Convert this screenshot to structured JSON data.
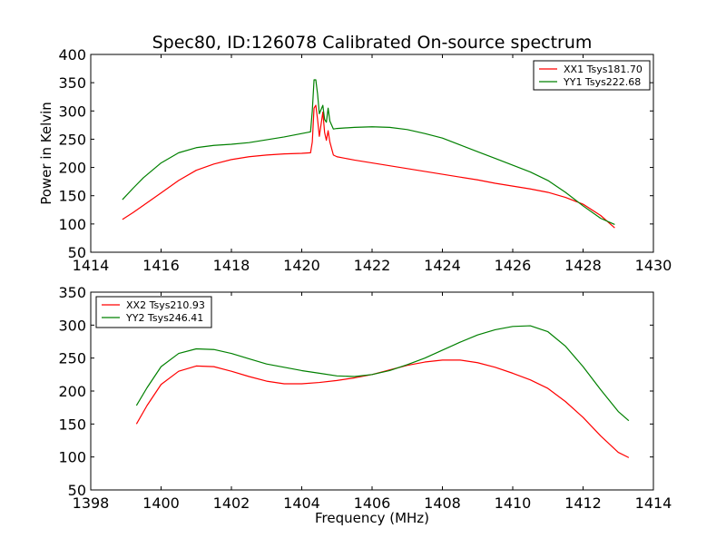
{
  "figure": {
    "title": "Spec80, ID:126078 Calibrated On-source spectrum"
  },
  "chart_data": [
    {
      "type": "line",
      "title": "Spec80, ID:126078 Calibrated On-source spectrum",
      "xlabel": "",
      "ylabel": "Power in Kelvin",
      "xlim": [
        1414,
        1430
      ],
      "ylim": [
        50,
        400
      ],
      "xticks": [
        1414,
        1416,
        1418,
        1420,
        1422,
        1424,
        1426,
        1428,
        1430
      ],
      "yticks": [
        50,
        100,
        150,
        200,
        250,
        300,
        350,
        400
      ],
      "grid": false,
      "legend_position": "top-right",
      "series": [
        {
          "name": "XX1 Tsys181.70",
          "color": "#ff0000",
          "x": [
            1414.9,
            1415.2,
            1415.5,
            1416.0,
            1416.5,
            1417.0,
            1417.5,
            1418.0,
            1418.5,
            1419.0,
            1419.5,
            1420.0,
            1420.25,
            1420.3,
            1420.35,
            1420.4,
            1420.45,
            1420.5,
            1420.6,
            1420.65,
            1420.7,
            1420.75,
            1420.8,
            1420.9,
            1421.0,
            1421.5,
            1422.0,
            1422.5,
            1423.0,
            1423.5,
            1424.0,
            1424.5,
            1425.0,
            1425.5,
            1426.0,
            1426.5,
            1427.0,
            1427.5,
            1428.0,
            1428.5,
            1428.9
          ],
          "y": [
            108,
            120,
            133,
            155,
            177,
            195,
            206,
            214,
            219,
            222,
            224,
            225,
            226,
            245,
            305,
            310,
            285,
            255,
            298,
            262,
            248,
            265,
            245,
            222,
            219,
            213,
            208,
            203,
            198,
            193,
            188,
            183,
            178,
            172,
            167,
            162,
            156,
            147,
            135,
            115,
            93
          ]
        },
        {
          "name": "YY1 Tsys222.68",
          "color": "#008000",
          "x": [
            1414.9,
            1415.2,
            1415.5,
            1416.0,
            1416.5,
            1417.0,
            1417.5,
            1418.0,
            1418.5,
            1419.0,
            1419.5,
            1420.0,
            1420.25,
            1420.3,
            1420.35,
            1420.4,
            1420.45,
            1420.5,
            1420.6,
            1420.65,
            1420.7,
            1420.75,
            1420.8,
            1420.9,
            1421.0,
            1421.5,
            1422.0,
            1422.5,
            1423.0,
            1423.5,
            1424.0,
            1424.5,
            1425.0,
            1425.5,
            1426.0,
            1426.5,
            1427.0,
            1427.5,
            1428.0,
            1428.5,
            1428.9
          ],
          "y": [
            143,
            163,
            182,
            208,
            226,
            235,
            239,
            241,
            244,
            249,
            254,
            260,
            263,
            300,
            355,
            355,
            330,
            295,
            310,
            285,
            280,
            305,
            282,
            268,
            269,
            271,
            272,
            271,
            267,
            260,
            252,
            240,
            228,
            216,
            204,
            192,
            177,
            156,
            132,
            110,
            99
          ]
        }
      ]
    },
    {
      "type": "line",
      "title": "",
      "xlabel": "Frequency (MHz)",
      "ylabel": "",
      "xlim": [
        1398,
        1414
      ],
      "ylim": [
        50,
        350
      ],
      "xticks": [
        1398,
        1400,
        1402,
        1404,
        1406,
        1408,
        1410,
        1412,
        1414
      ],
      "yticks": [
        50,
        100,
        150,
        200,
        250,
        300,
        350
      ],
      "grid": false,
      "legend_position": "top-left",
      "series": [
        {
          "name": "XX2 Tsys210.93",
          "color": "#ff0000",
          "x": [
            1399.3,
            1399.6,
            1400.0,
            1400.5,
            1401.0,
            1401.5,
            1402.0,
            1402.5,
            1403.0,
            1403.5,
            1404.0,
            1404.5,
            1405.0,
            1405.5,
            1406.0,
            1406.5,
            1407.0,
            1407.5,
            1408.0,
            1408.5,
            1409.0,
            1409.5,
            1410.0,
            1410.5,
            1411.0,
            1411.5,
            1412.0,
            1412.5,
            1413.0,
            1413.3
          ],
          "y": [
            150,
            178,
            210,
            230,
            238,
            237,
            230,
            222,
            215,
            211,
            211,
            213,
            216,
            220,
            225,
            232,
            239,
            244,
            247,
            247,
            243,
            236,
            227,
            217,
            204,
            184,
            160,
            132,
            107,
            99
          ]
        },
        {
          "name": "YY2 Tsys246.41",
          "color": "#008000",
          "x": [
            1399.3,
            1399.6,
            1400.0,
            1400.5,
            1401.0,
            1401.5,
            1402.0,
            1402.5,
            1403.0,
            1403.5,
            1404.0,
            1404.5,
            1405.0,
            1405.5,
            1406.0,
            1406.5,
            1407.0,
            1407.5,
            1408.0,
            1408.5,
            1409.0,
            1409.5,
            1410.0,
            1410.5,
            1411.0,
            1411.5,
            1412.0,
            1412.5,
            1413.0,
            1413.3
          ],
          "y": [
            178,
            205,
            237,
            257,
            264,
            263,
            257,
            249,
            241,
            236,
            231,
            227,
            223,
            222,
            225,
            231,
            240,
            250,
            262,
            274,
            285,
            293,
            298,
            299,
            290,
            268,
            237,
            202,
            169,
            155
          ]
        }
      ]
    }
  ]
}
